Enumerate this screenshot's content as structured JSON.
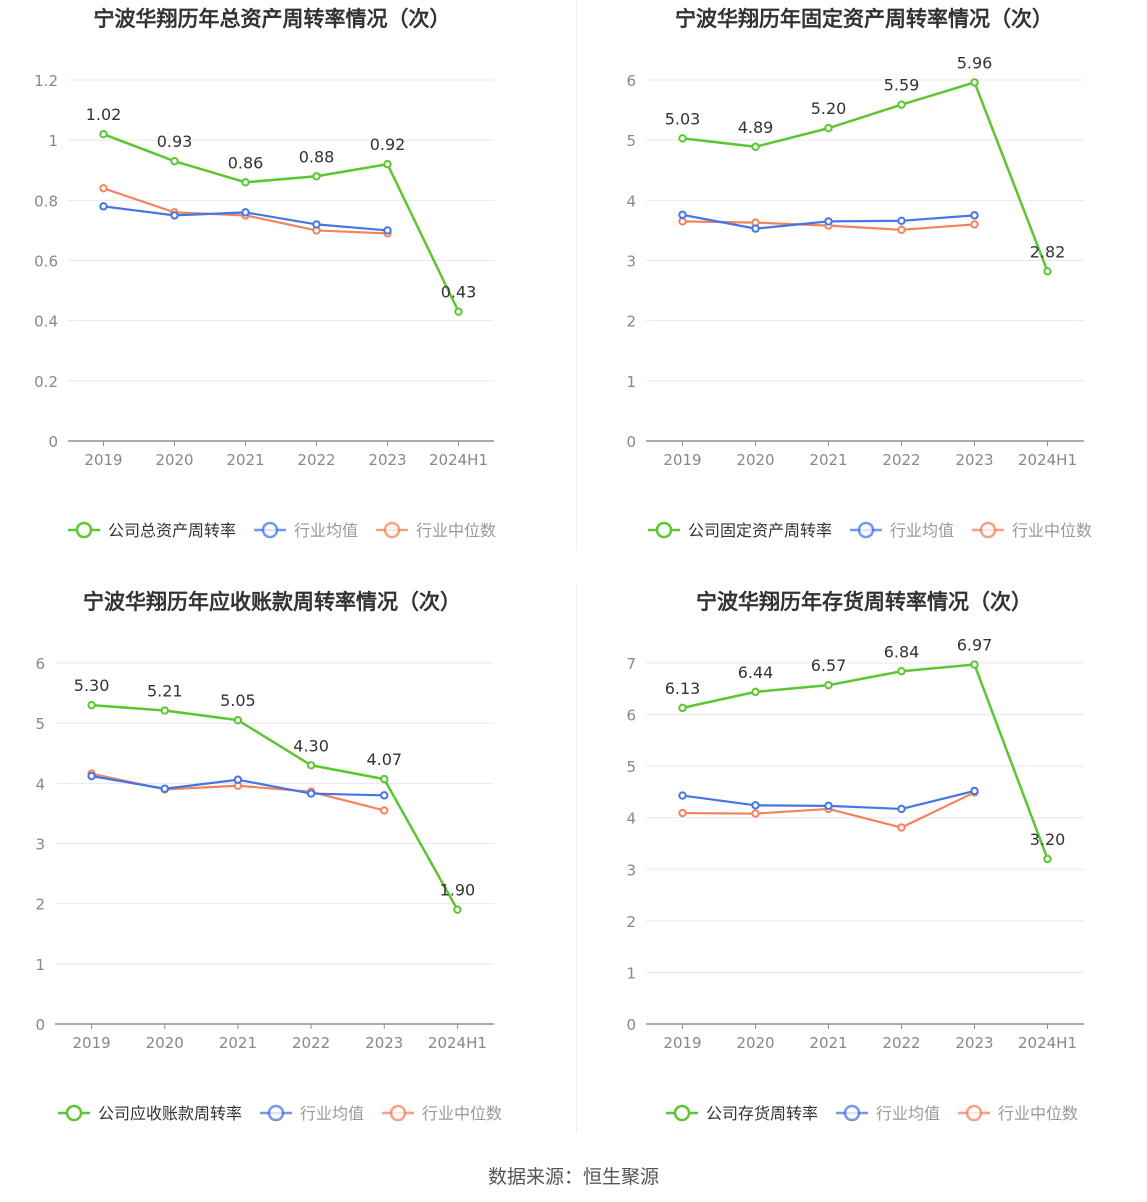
{
  "colors": {
    "company": "#5cc630",
    "avg": "#4575e6",
    "median": "#f2845c",
    "grid": "#e6e8f2",
    "axis": "#8a8f99",
    "text": "#333333"
  },
  "legend_labels": {
    "avg": "行业均值",
    "median": "行业中位数"
  },
  "source": "数据来源：恒生聚源",
  "chart_data": [
    {
      "type": "line",
      "title": "宁波华翔历年总资产周转率情况（次）",
      "categories": [
        "2019",
        "2020",
        "2021",
        "2022",
        "2023",
        "2024H1"
      ],
      "ylim": [
        0,
        1.2
      ],
      "yticks": [
        0,
        0.2,
        0.4,
        0.6,
        0.8,
        1,
        1.2
      ],
      "ytick_labels": [
        "0",
        "0.2",
        "0.4",
        "0.6",
        "0.8",
        "1",
        "1.2"
      ],
      "legend_position": "bottom",
      "series": [
        {
          "name": "公司总资产周转率",
          "values": [
            1.02,
            0.93,
            0.86,
            0.88,
            0.92,
            0.43
          ],
          "labels": [
            "1.02",
            "0.93",
            "0.86",
            "0.88",
            "0.92",
            "0.43"
          ]
        },
        {
          "name": "行业均值",
          "values": [
            0.78,
            0.75,
            0.76,
            0.72,
            0.7,
            null
          ]
        },
        {
          "name": "行业中位数",
          "values": [
            0.84,
            0.76,
            0.75,
            0.7,
            0.69,
            null
          ]
        }
      ]
    },
    {
      "type": "line",
      "title": "宁波华翔历年固定资产周转率情况（次）",
      "categories": [
        "2019",
        "2020",
        "2021",
        "2022",
        "2023",
        "2024H1"
      ],
      "ylim": [
        0,
        6
      ],
      "yticks": [
        0,
        1,
        2,
        3,
        4,
        5,
        6
      ],
      "ytick_labels": [
        "0",
        "1",
        "2",
        "3",
        "4",
        "5",
        "6"
      ],
      "legend_position": "bottom",
      "series": [
        {
          "name": "公司固定资产周转率",
          "values": [
            5.03,
            4.89,
            5.2,
            5.59,
            5.96,
            2.82
          ],
          "labels": [
            "5.03",
            "4.89",
            "5.20",
            "5.59",
            "5.96",
            "2.82"
          ]
        },
        {
          "name": "行业均值",
          "values": [
            3.76,
            3.53,
            3.65,
            3.66,
            3.75,
            null
          ]
        },
        {
          "name": "行业中位数",
          "values": [
            3.65,
            3.63,
            3.58,
            3.51,
            3.6,
            null
          ]
        }
      ]
    },
    {
      "type": "line",
      "title": "宁波华翔历年应收账款周转率情况（次）",
      "categories": [
        "2019",
        "2020",
        "2021",
        "2022",
        "2023",
        "2024H1"
      ],
      "ylim": [
        0,
        6
      ],
      "yticks": [
        0,
        1,
        2,
        3,
        4,
        5,
        6
      ],
      "ytick_labels": [
        "0",
        "1",
        "2",
        "3",
        "4",
        "5",
        "6"
      ],
      "legend_position": "bottom",
      "series": [
        {
          "name": "公司应收账款周转率",
          "values": [
            5.3,
            5.21,
            5.05,
            4.3,
            4.07,
            1.9
          ],
          "labels": [
            "5.30",
            "5.21",
            "5.05",
            "4.30",
            "4.07",
            "1.90"
          ]
        },
        {
          "name": "行业均值",
          "values": [
            4.12,
            3.91,
            4.06,
            3.83,
            3.8,
            null
          ]
        },
        {
          "name": "行业中位数",
          "values": [
            4.16,
            3.9,
            3.96,
            3.86,
            3.55,
            null
          ]
        }
      ]
    },
    {
      "type": "line",
      "title": "宁波华翔历年存货周转率情况（次）",
      "categories": [
        "2019",
        "2020",
        "2021",
        "2022",
        "2023",
        "2024H1"
      ],
      "ylim": [
        0,
        7
      ],
      "yticks": [
        0,
        1,
        2,
        3,
        4,
        5,
        6,
        7
      ],
      "ytick_labels": [
        "0",
        "1",
        "2",
        "3",
        "4",
        "5",
        "6",
        "7"
      ],
      "legend_position": "bottom",
      "series": [
        {
          "name": "公司存货周转率",
          "values": [
            6.13,
            6.44,
            6.57,
            6.84,
            6.97,
            3.2
          ],
          "labels": [
            "6.13",
            "6.44",
            "6.57",
            "6.84",
            "6.97",
            "3.20"
          ]
        },
        {
          "name": "行业均值",
          "values": [
            4.43,
            4.24,
            4.23,
            4.17,
            4.52,
            null
          ]
        },
        {
          "name": "行业中位数",
          "values": [
            4.09,
            4.08,
            4.17,
            3.81,
            4.49,
            null
          ]
        }
      ]
    }
  ]
}
